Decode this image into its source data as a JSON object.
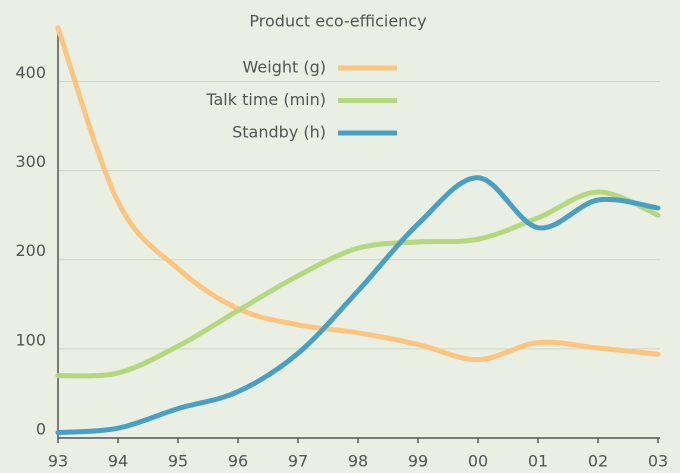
{
  "chart_data": {
    "type": "line",
    "title": "Product eco-efficiency",
    "categories": [
      "93",
      "94",
      "95",
      "96",
      "97",
      "98",
      "99",
      "00",
      "01",
      "02",
      "03"
    ],
    "series": [
      {
        "name": "Weight (g)",
        "color": "#fdc57e",
        "values": [
          460,
          265,
          190,
          145,
          127,
          118,
          105,
          88,
          107,
          101,
          94
        ]
      },
      {
        "name": "Talk time (min)",
        "color": "#b5d77e",
        "values": [
          70,
          73,
          103,
          143,
          182,
          213,
          220,
          223,
          247,
          276,
          250
        ]
      },
      {
        "name": "Standby (h)",
        "color": "#4aa0c4",
        "values": [
          6,
          11,
          33,
          52,
          95,
          165,
          240,
          292,
          236,
          267,
          258
        ]
      }
    ],
    "ylim": [
      0,
      460
    ],
    "yticks": [
      0,
      100,
      200,
      300,
      400
    ],
    "grid": true,
    "legend": "top"
  }
}
